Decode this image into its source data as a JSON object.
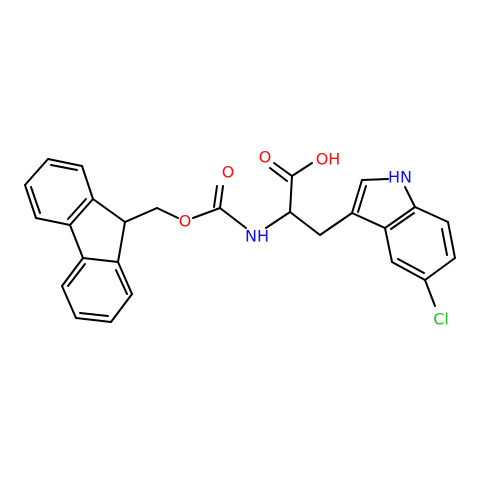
{
  "atoms": [
    {
      "label": "O",
      "color": "#ff0d0d"
    },
    {
      "label": "O",
      "color": "#ff0d0d"
    },
    {
      "label": "NH",
      "color": "#0d0dff"
    },
    {
      "label": "O",
      "color": "#ff0d0d"
    },
    {
      "label": "OH",
      "color": "#ff0d0d"
    },
    {
      "label": "HN",
      "color": "#0d0dff"
    },
    {
      "label": "Cl",
      "color": "#1fc01f"
    }
  ]
}
